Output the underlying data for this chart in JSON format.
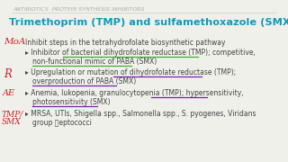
{
  "bg_color": "#f0f0eb",
  "header_text": "ANTIBIOTICS  PROTEIN SYNTHESIS INHIBITORS",
  "header_color": "#aaaaaa",
  "header_fontsize": 4.5,
  "title": "Trimethoprim (TMP) and sulfamethoxazole (SMX)",
  "title_color": "#1199bb",
  "title_fontsize": 8.2,
  "text_color": "#444444",
  "fontsize": 5.5,
  "annotation_color": "#cc2222",
  "green_color": "#44aa33",
  "purple_color": "#7722aa",
  "bullet_char": "▸",
  "line1": "Inhibit steps in the tetrahydrofolate biosynthetic pathway",
  "line2a": "▸ Inhibitor of bacterial dihydrofolate reductase (TMP); competitive,",
  "line2b": "non-functional mimic of PABA (SMX)",
  "line3a": "▸ Upregulation or mutation of dihydrofolate reductase (TMP);",
  "line3b": "overproduction of PABA (SMX)",
  "line4a": "▸ Anemia, lukopenia, granulocytopenia (TMP); hypersensitivity,",
  "line4b": "photosensitivity (SMX)",
  "line5a": "▸ MRSA, UTIs, Shigella spp., Salmonella spp., S. pyogenes, Viridans",
  "line5b": "group ⛔eptococci",
  "ann1": "MoA",
  "ann2": "R",
  "ann3": "AE",
  "ann4a": "TMP/",
  "ann4b": "SMX"
}
